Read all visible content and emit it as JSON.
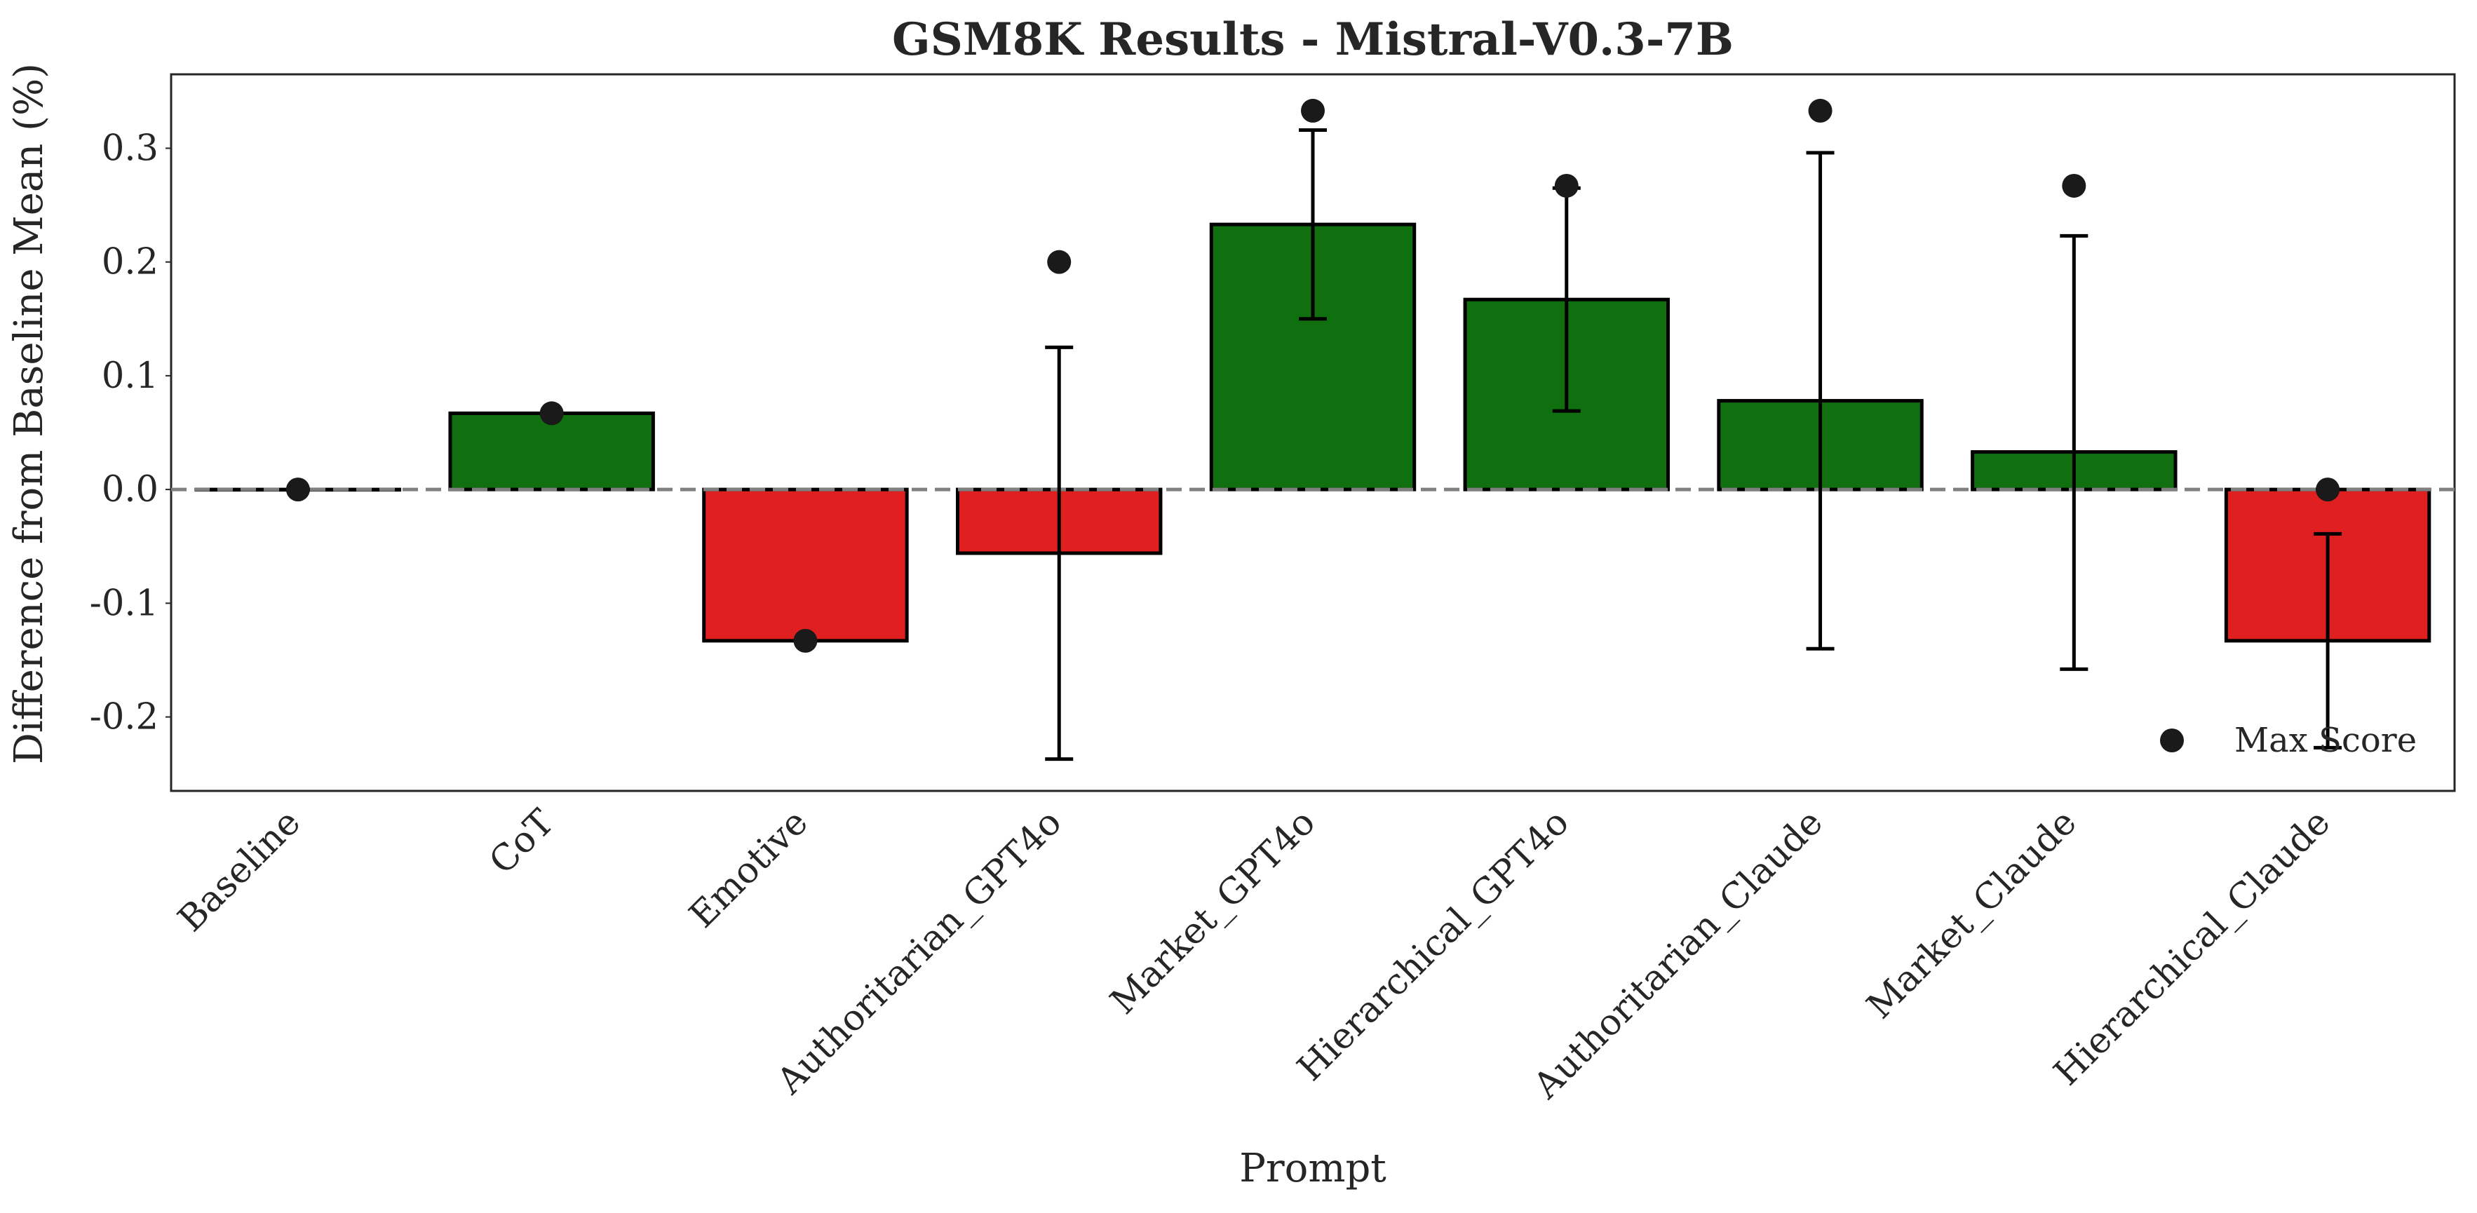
{
  "chart_data": {
    "type": "bar",
    "title": "GSM8K Results - Mistral-V0.3-7B",
    "xlabel": "Prompt",
    "ylabel": "Difference from Baseline Mean (%)",
    "ylim": [
      -0.265,
      0.365
    ],
    "yticks": [
      0.3,
      0.2,
      0.1,
      0.0,
      -0.1,
      -0.2
    ],
    "ytick_labels": [
      "0.3",
      "0.2",
      "0.1",
      "0.0",
      "-0.1",
      "-0.2"
    ],
    "categories": [
      "Baseline",
      "CoT",
      "Emotive",
      "Authoritarian_GPT4o",
      "Market_GPT4o",
      "Hierarchical_GPT4o",
      "Authoritarian_Claude",
      "Market_Claude",
      "Hierarchical_Claude"
    ],
    "values": [
      0.0,
      0.067,
      -0.133,
      -0.056,
      0.233,
      0.167,
      0.078,
      0.033,
      -0.133
    ],
    "error_low": [
      null,
      null,
      null,
      -0.237,
      0.15,
      0.069,
      -0.14,
      -0.158,
      -0.227
    ],
    "error_high": [
      null,
      null,
      null,
      0.125,
      0.316,
      0.265,
      0.296,
      0.223,
      -0.039
    ],
    "max_scores": [
      0.0,
      0.067,
      -0.133,
      0.2,
      0.333,
      0.267,
      0.333,
      0.267,
      0.0
    ],
    "legend": {
      "label": "Max Score",
      "position": "lower-right"
    },
    "reference_line": 0.0,
    "grid": false,
    "colors": {
      "positive": "#107010",
      "negative": "#e02020",
      "marker": "#1a1a1a",
      "reference": "#808080",
      "edge": "#000000"
    }
  }
}
